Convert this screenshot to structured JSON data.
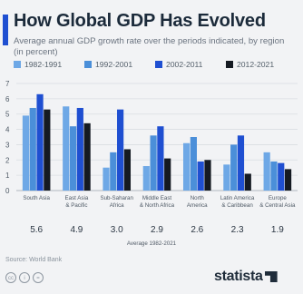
{
  "title": "How Global GDP Has Evolved",
  "subtitle": "Average annual GDP growth rate over the periods indicated, by region (in percent)",
  "colors": {
    "accent": "#1f4fd1",
    "series": [
      "#6ea8e6",
      "#4b8fd9",
      "#1f4fd1",
      "#151a22"
    ]
  },
  "chart_data": {
    "type": "bar",
    "categories": [
      [
        "South Asia"
      ],
      [
        "East Asia",
        "& Pacific"
      ],
      [
        "Sub-Saharan",
        "Africa"
      ],
      [
        "Middle East",
        "& North Africa"
      ],
      [
        "North",
        "America"
      ],
      [
        "Latin America",
        "& Caribbean"
      ],
      [
        "Europe",
        "& Central Asia"
      ]
    ],
    "series": [
      {
        "name": "1982-1991",
        "values": [
          4.9,
          5.5,
          1.5,
          1.6,
          3.1,
          1.7,
          2.5
        ]
      },
      {
        "name": "1992-2001",
        "values": [
          5.4,
          4.2,
          2.5,
          3.6,
          3.5,
          3.0,
          1.9
        ]
      },
      {
        "name": "2002-2011",
        "values": [
          6.3,
          5.4,
          5.3,
          4.2,
          1.9,
          3.6,
          1.8
        ]
      },
      {
        "name": "2012-2021",
        "values": [
          5.3,
          4.4,
          2.7,
          2.1,
          2.0,
          1.1,
          1.4
        ]
      }
    ],
    "ylim": [
      0,
      7
    ],
    "yticks": [
      "0",
      "1",
      "2",
      "3",
      "4",
      "5",
      "6",
      "7"
    ],
    "grid": true,
    "legend_position": "top-left",
    "averages": [
      "5.6",
      "4.9",
      "3.0",
      "2.9",
      "2.6",
      "2.3",
      "1.9"
    ],
    "averages_caption": "Average 1982-2021"
  },
  "source": "Source: World Bank",
  "brand": "statista",
  "license_icons": [
    "cc",
    "by",
    "nd"
  ]
}
